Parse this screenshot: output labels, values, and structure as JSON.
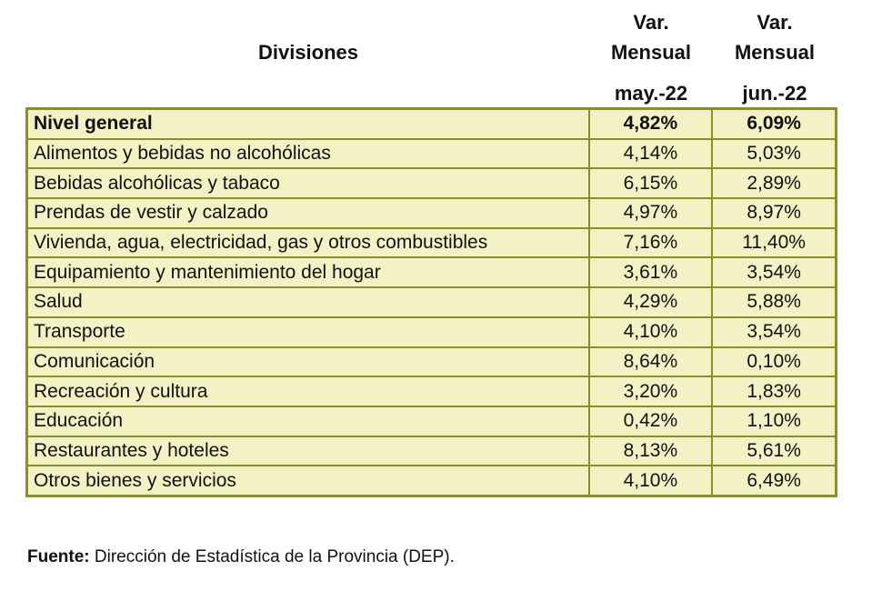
{
  "header": {
    "divisiones": "Divisiones",
    "col_may": {
      "line1": "Var.",
      "line2": "Mensual",
      "period": "may.-22"
    },
    "col_jun": {
      "line1": "Var.",
      "line2": "Mensual",
      "period": "jun.-22"
    }
  },
  "rows": [
    {
      "name": "Nivel general",
      "may": "4,82%",
      "jun": "6,09%"
    },
    {
      "name": "Alimentos y bebidas no alcohólicas",
      "may": "4,14%",
      "jun": "5,03%"
    },
    {
      "name": "Bebidas alcohólicas y tabaco",
      "may": "6,15%",
      "jun": "2,89%"
    },
    {
      "name": "Prendas de vestir y calzado",
      "may": "4,97%",
      "jun": "8,97%"
    },
    {
      "name": "Vivienda, agua, electricidad, gas y otros combustibles",
      "may": "7,16%",
      "jun": "11,40%"
    },
    {
      "name": "Equipamiento y mantenimiento del hogar",
      "may": "3,61%",
      "jun": "3,54%"
    },
    {
      "name": "Salud",
      "may": "4,29%",
      "jun": "5,88%"
    },
    {
      "name": "Transporte",
      "may": "4,10%",
      "jun": "3,54%"
    },
    {
      "name": "Comunicación",
      "may": "8,64%",
      "jun": "0,10%"
    },
    {
      "name": "Recreación y cultura",
      "may": "3,20%",
      "jun": "1,83%"
    },
    {
      "name": "Educación",
      "may": "0,42%",
      "jun": "1,10%"
    },
    {
      "name": "Restaurantes y hoteles",
      "may": "8,13%",
      "jun": "5,61%"
    },
    {
      "name": "Otros bienes y servicios",
      "may": "4,10%",
      "jun": "6,49%"
    }
  ],
  "footer": {
    "label": "Fuente:",
    "text": " Dirección de Estadística de la Provincia (DEP)."
  },
  "colors": {
    "cell_fill": "#f2f2c4",
    "border": "#8d8d2a"
  }
}
